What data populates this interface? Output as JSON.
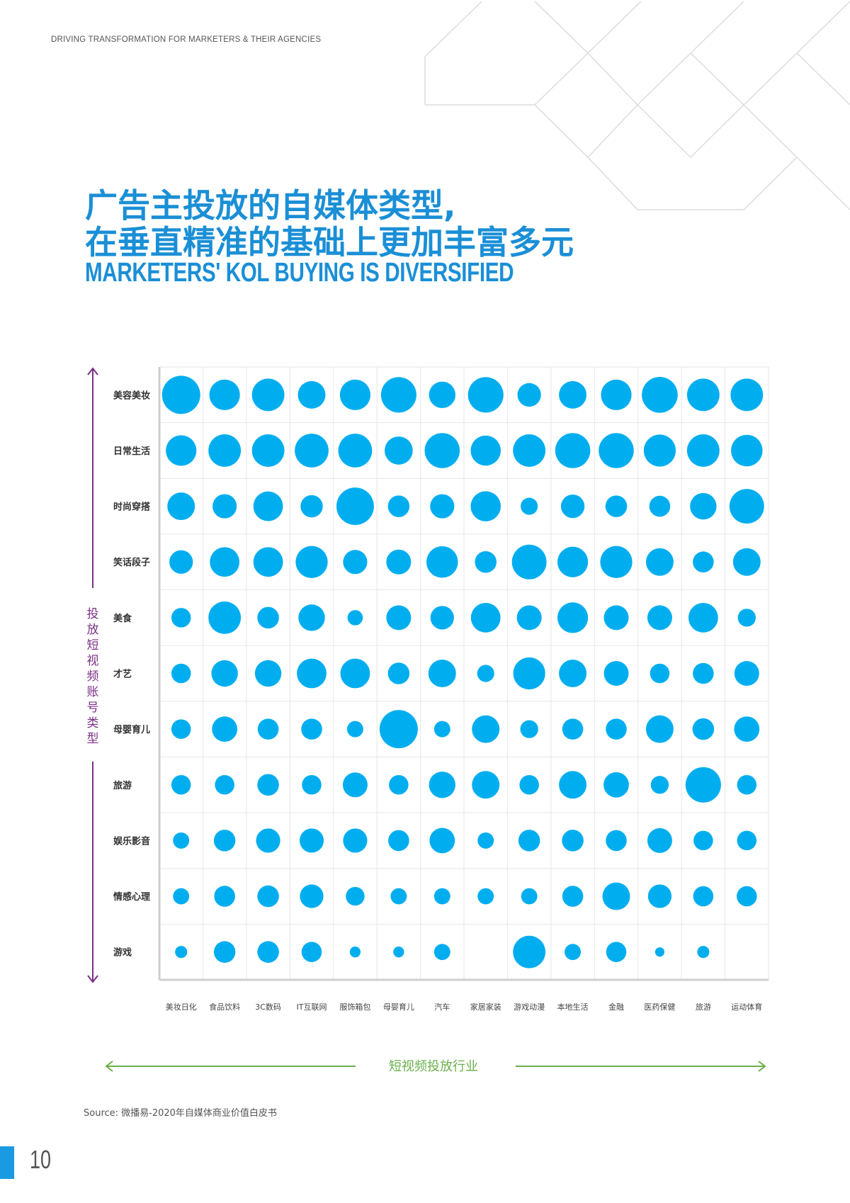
{
  "header": {
    "tagline": "DRIVING TRANSFORMATION FOR MARKETERS & THEIR AGENCIES"
  },
  "title": {
    "line1": "广告主投放的自媒体类型,",
    "line2": "在垂直精准的基础上更加丰富多元",
    "english": "MARKETERS' KOL BUYING IS DIVERSIFIED"
  },
  "chart_data": {
    "type": "bubble-matrix",
    "xlabel": "短视频投放行业",
    "ylabel": "投放短视频账号类型",
    "x_categories": [
      "美妆日化",
      "食品饮料",
      "3C数码",
      "IT互联网",
      "服饰箱包",
      "母婴育儿",
      "汽车",
      "家居家装",
      "游戏动漫",
      "本地生活",
      "金融",
      "医药保健",
      "旅游",
      "运动体育"
    ],
    "y_categories": [
      "美容美妆",
      "日常生活",
      "时尚穿搭",
      "笑话段子",
      "美食",
      "才艺",
      "母婴育儿",
      "旅游",
      "娱乐影音",
      "情感心理",
      "游戏"
    ],
    "size_scale": "relative value 1-5 (bubble size)",
    "values": [
      [
        5.0,
        3.2,
        3.6,
        2.6,
        3.2,
        4.3,
        2.4,
        4.3,
        1.9,
        2.6,
        3.2,
        4.4,
        3.6,
        3.6
      ],
      [
        3.2,
        3.6,
        3.6,
        3.9,
        3.9,
        2.7,
        4.2,
        3.1,
        3.6,
        4.2,
        4.2,
        3.5,
        3.6,
        3.4
      ],
      [
        2.6,
        2.0,
        3.0,
        1.7,
        4.8,
        1.6,
        2.0,
        3.1,
        1.0,
        1.9,
        1.6,
        1.5,
        2.4,
        4.1
      ],
      [
        1.9,
        3.0,
        3.0,
        3.5,
        2.0,
        2.1,
        3.4,
        1.6,
        4.1,
        3.2,
        3.5,
        2.6,
        1.5,
        2.6
      ],
      [
        1.3,
        3.6,
        1.6,
        2.4,
        0.8,
        2.1,
        1.9,
        3.0,
        2.1,
        3.2,
        2.1,
        2.1,
        3.0,
        1.1
      ],
      [
        1.3,
        2.4,
        2.4,
        3.0,
        3.0,
        1.6,
        2.6,
        1.0,
        3.5,
        2.6,
        2.1,
        1.3,
        1.5,
        2.1
      ],
      [
        1.3,
        2.2,
        1.5,
        1.5,
        0.9,
        5.0,
        0.9,
        2.6,
        1.1,
        1.5,
        1.5,
        2.6,
        1.6,
        2.2
      ],
      [
        1.3,
        1.3,
        1.6,
        1.3,
        2.1,
        1.3,
        2.4,
        2.6,
        1.3,
        2.6,
        2.2,
        1.1,
        4.3,
        1.3
      ],
      [
        0.9,
        1.6,
        2.0,
        2.0,
        2.0,
        1.5,
        2.2,
        0.9,
        1.6,
        1.6,
        1.5,
        2.1,
        1.3,
        1.3
      ],
      [
        0.9,
        1.5,
        1.6,
        1.9,
        1.2,
        0.9,
        0.9,
        0.9,
        0.9,
        1.5,
        2.6,
        1.9,
        1.4,
        1.4
      ],
      [
        0.5,
        1.6,
        1.6,
        1.4,
        0.4,
        0.4,
        0.9,
        null,
        3.6,
        0.9,
        1.4,
        0.3,
        0.5,
        null
      ]
    ],
    "bubble_color": "#00aeef",
    "axis_color_y": "#7b2f86",
    "axis_color_x": "#6ab04c",
    "grid": true
  },
  "footer": {
    "source": "Source: 微播易-2020年自媒体商业价值白皮书",
    "page_number": "10"
  }
}
